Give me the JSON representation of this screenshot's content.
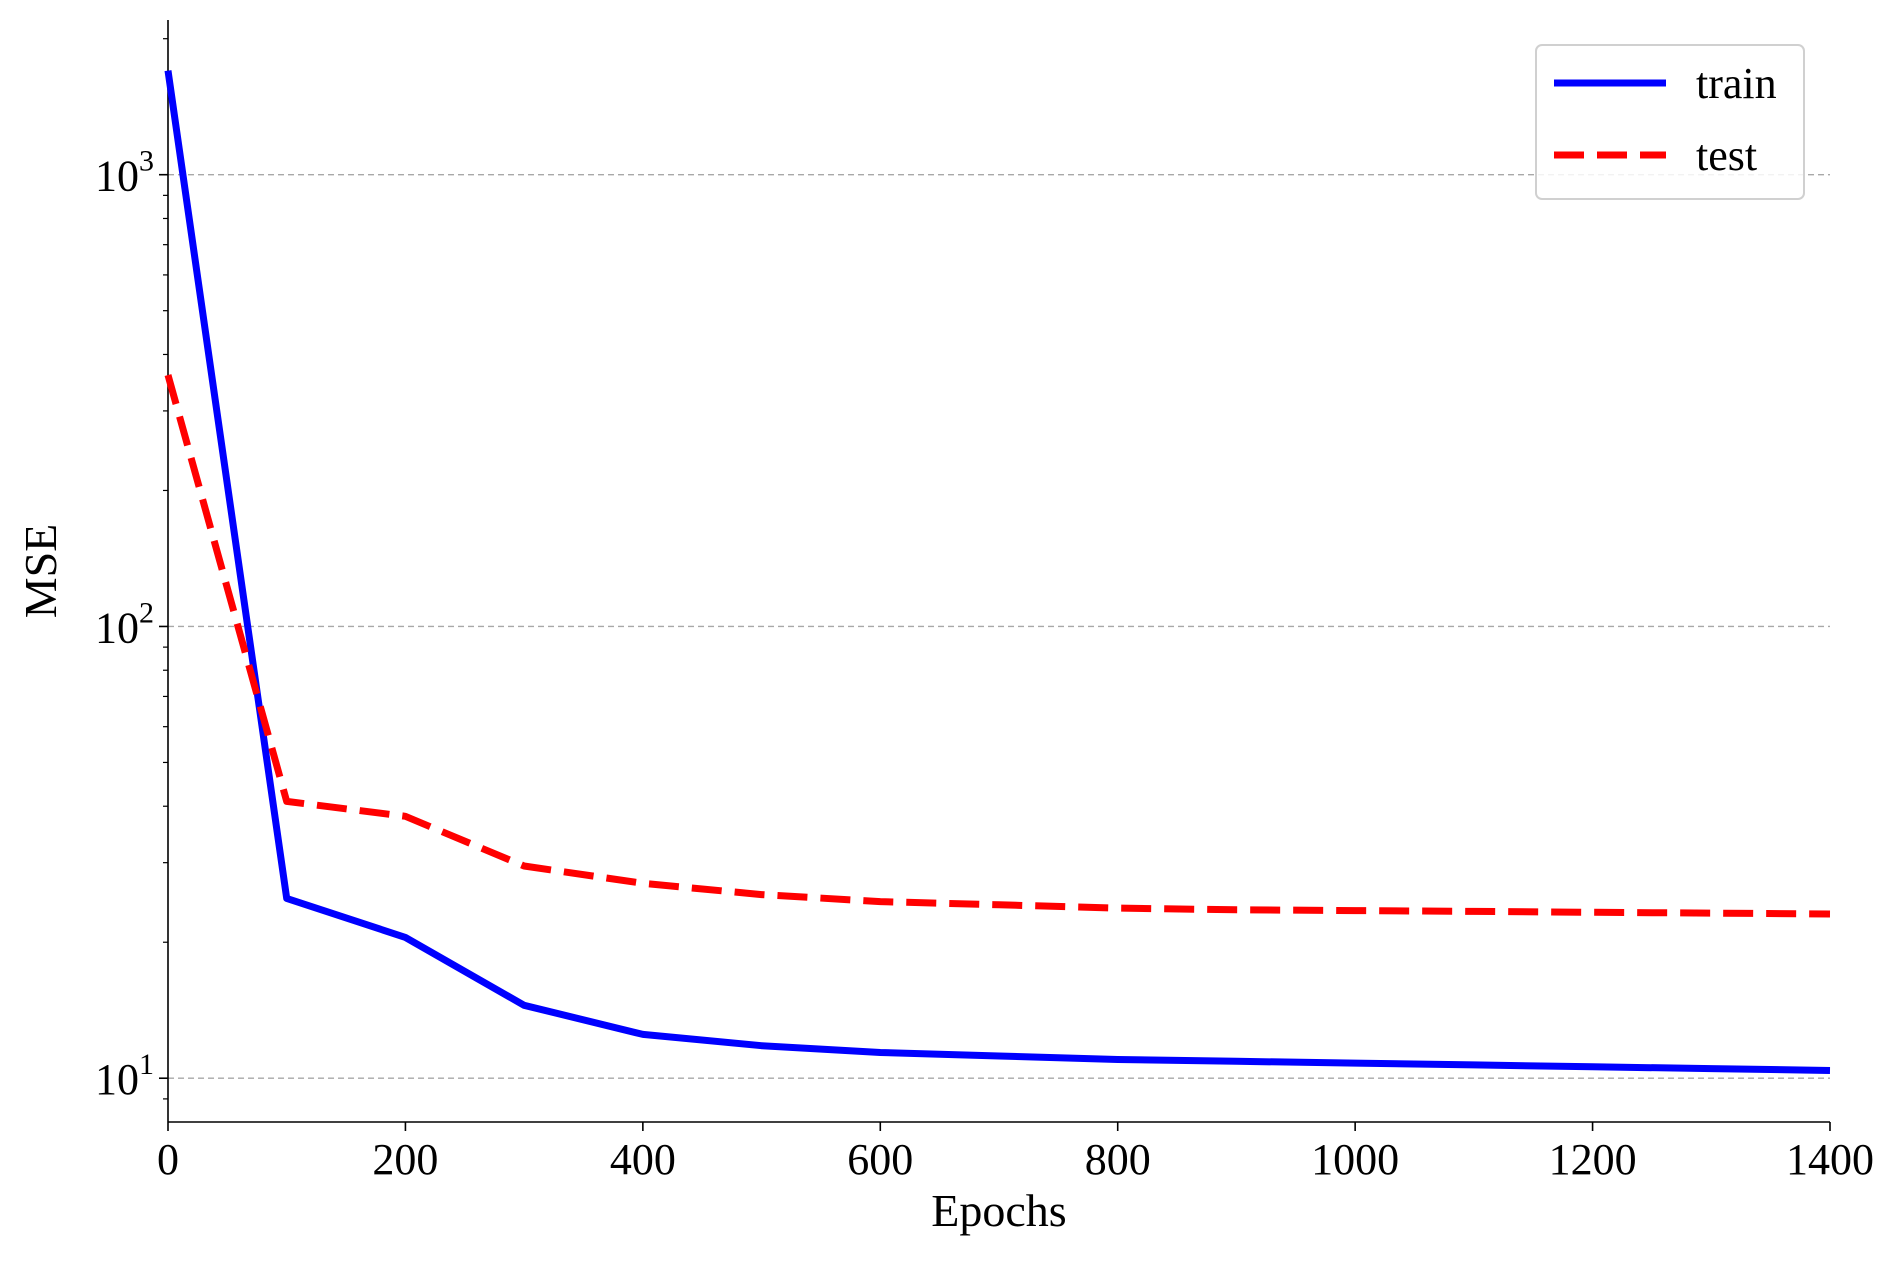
{
  "chart_data": {
    "type": "line",
    "title": "",
    "xlabel": "Epochs",
    "ylabel": "MSE",
    "yscale": "log",
    "xlim": [
      0,
      1400
    ],
    "ylim": [
      8,
      2200
    ],
    "grid": "horizontal-dashed",
    "legend_position": "top-right",
    "x_ticks": [
      {
        "value": 0,
        "label": "0"
      },
      {
        "value": 200,
        "label": "200"
      },
      {
        "value": 400,
        "label": "400"
      },
      {
        "value": 600,
        "label": "600"
      },
      {
        "value": 800,
        "label": "800"
      },
      {
        "value": 1000,
        "label": "1000"
      },
      {
        "value": 1200,
        "label": "1200"
      },
      {
        "value": 1400,
        "label": "1400"
      }
    ],
    "y_ticks": [
      {
        "value": 10,
        "base": "10",
        "exp": "1"
      },
      {
        "value": 100,
        "base": "10",
        "exp": "2"
      },
      {
        "value": 1000,
        "base": "10",
        "exp": "3"
      }
    ],
    "x": [
      0,
      100,
      200,
      300,
      400,
      500,
      600,
      700,
      800,
      900,
      1000,
      1100,
      1200,
      1300,
      1400
    ],
    "series": [
      {
        "name": "train",
        "color": "#0000ff",
        "style": "solid",
        "values": [
          1700,
          25,
          20.5,
          14.5,
          12.5,
          11.8,
          11.4,
          11.2,
          11.0,
          10.9,
          10.8,
          10.7,
          10.6,
          10.5,
          10.4
        ]
      },
      {
        "name": "test",
        "color": "#ff0000",
        "style": "dashed",
        "values": [
          360,
          41,
          38,
          29.5,
          27,
          25.5,
          24.6,
          24.2,
          23.8,
          23.6,
          23.5,
          23.4,
          23.3,
          23.2,
          23.1
        ]
      }
    ]
  }
}
